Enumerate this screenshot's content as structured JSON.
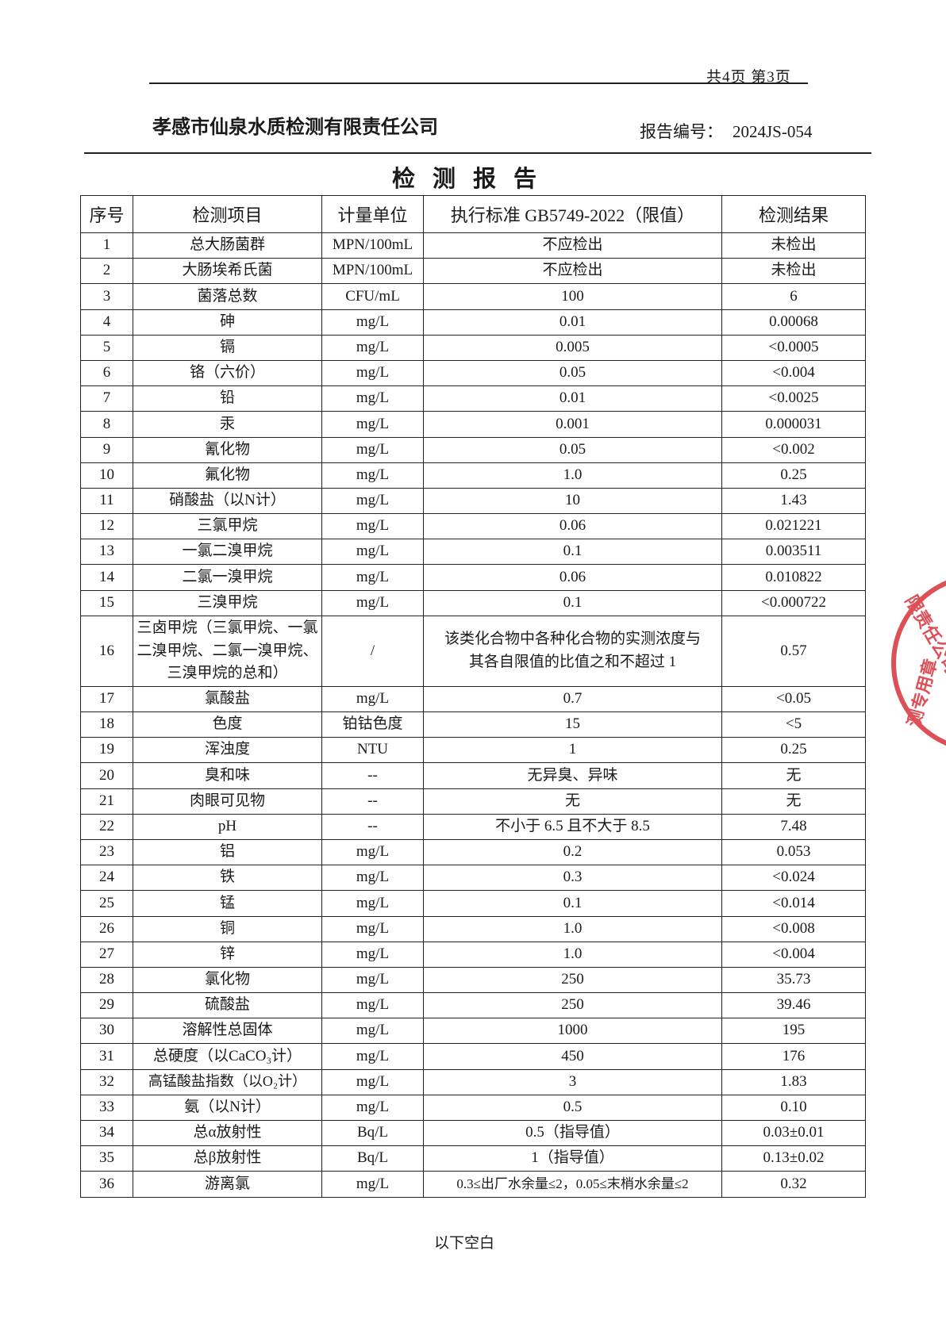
{
  "header": {
    "pager": "共4页 第3页",
    "company": "孝感市仙泉水质检测有限责任公司",
    "report_no_label": "报告编号：",
    "report_no": "2024JS-054",
    "title": "检测报告"
  },
  "table": {
    "columns": [
      "序号",
      "检测项目",
      "计量单位",
      "执行标准 GB5749-2022（限值）",
      "检测结果"
    ],
    "rows": [
      [
        "1",
        "总大肠菌群",
        "MPN/100mL",
        "不应检出",
        "未检出"
      ],
      [
        "2",
        "大肠埃希氏菌",
        "MPN/100mL",
        "不应检出",
        "未检出"
      ],
      [
        "3",
        "菌落总数",
        "CFU/mL",
        "100",
        "6"
      ],
      [
        "4",
        "砷",
        "mg/L",
        "0.01",
        "0.00068"
      ],
      [
        "5",
        "镉",
        "mg/L",
        "0.005",
        "<0.0005"
      ],
      [
        "6",
        "铬（六价）",
        "mg/L",
        "0.05",
        "<0.004"
      ],
      [
        "7",
        "铅",
        "mg/L",
        "0.01",
        "<0.0025"
      ],
      [
        "8",
        "汞",
        "mg/L",
        "0.001",
        "0.000031"
      ],
      [
        "9",
        "氰化物",
        "mg/L",
        "0.05",
        "<0.002"
      ],
      [
        "10",
        "氟化物",
        "mg/L",
        "1.0",
        "0.25"
      ],
      [
        "11",
        "硝酸盐（以N计）",
        "mg/L",
        "10",
        "1.43"
      ],
      [
        "12",
        "三氯甲烷",
        "mg/L",
        "0.06",
        "0.021221"
      ],
      [
        "13",
        "一氯二溴甲烷",
        "mg/L",
        "0.1",
        "0.003511"
      ],
      [
        "14",
        "二氯一溴甲烷",
        "mg/L",
        "0.06",
        "0.010822"
      ],
      [
        "15",
        "三溴甲烷",
        "mg/L",
        "0.1",
        "<0.000722"
      ],
      [
        "16",
        "三卤甲烷（三氯甲烷、一氯二溴甲烷、二氯一溴甲烷、三溴甲烷的总和）",
        "/",
        "该类化合物中各种化合物的实测浓度与其各自限值的比值之和不超过 1",
        "0.57"
      ],
      [
        "17",
        "氯酸盐",
        "mg/L",
        "0.7",
        "<0.05"
      ],
      [
        "18",
        "色度",
        "铂钴色度",
        "15",
        "<5"
      ],
      [
        "19",
        "浑浊度",
        "NTU",
        "1",
        "0.25"
      ],
      [
        "20",
        "臭和味",
        "--",
        "无异臭、异味",
        "无"
      ],
      [
        "21",
        "肉眼可见物",
        "--",
        "无",
        "无"
      ],
      [
        "22",
        "pH",
        "--",
        "不小于 6.5 且不大于 8.5",
        "7.48"
      ],
      [
        "23",
        "铝",
        "mg/L",
        "0.2",
        "0.053"
      ],
      [
        "24",
        "铁",
        "mg/L",
        "0.3",
        "<0.024"
      ],
      [
        "25",
        "锰",
        "mg/L",
        "0.1",
        "<0.014"
      ],
      [
        "26",
        "铜",
        "mg/L",
        "1.0",
        "<0.008"
      ],
      [
        "27",
        "锌",
        "mg/L",
        "1.0",
        "<0.004"
      ],
      [
        "28",
        "氯化物",
        "mg/L",
        "250",
        "35.73"
      ],
      [
        "29",
        "硫酸盐",
        "mg/L",
        "250",
        "39.46"
      ],
      [
        "30",
        "溶解性总固体",
        "mg/L",
        "1000",
        "195"
      ],
      [
        "31",
        "总硬度（以CaCO₃计）",
        "mg/L",
        "450",
        "176"
      ],
      [
        "32",
        "高锰酸盐指数（以O₂计）",
        "mg/L",
        "3",
        "1.83"
      ],
      [
        "33",
        "氨（以N计）",
        "mg/L",
        "0.5",
        "0.10"
      ],
      [
        "34",
        "总α放射性",
        "Bq/L",
        "0.5（指导值）",
        "0.03±0.01"
      ],
      [
        "35",
        "总β放射性",
        "Bq/L",
        "1（指导值）",
        "0.13±0.02"
      ],
      [
        "36",
        "游离氯",
        "mg/L",
        "0.3≤出厂水余量≤2，0.05≤末梢水余量≤2",
        "0.32"
      ]
    ]
  },
  "footer": {
    "blank_note": "以下空白"
  },
  "stamp": {
    "text_top": "限责任公司",
    "text_bottom": "测专用章",
    "color": "#d8323c"
  }
}
